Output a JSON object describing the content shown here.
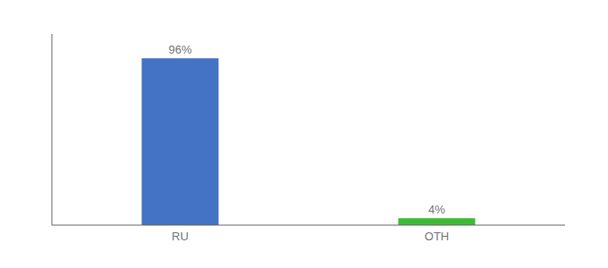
{
  "chart_data": {
    "type": "bar",
    "categories": [
      "RU",
      "OTH"
    ],
    "values": [
      96,
      4
    ],
    "value_labels": [
      "96%",
      "4%"
    ],
    "colors": [
      "#4472c4",
      "#3dbb35"
    ],
    "ylim": [
      0,
      110
    ],
    "data_labels": true,
    "tick_labels": "x",
    "grid": false
  }
}
